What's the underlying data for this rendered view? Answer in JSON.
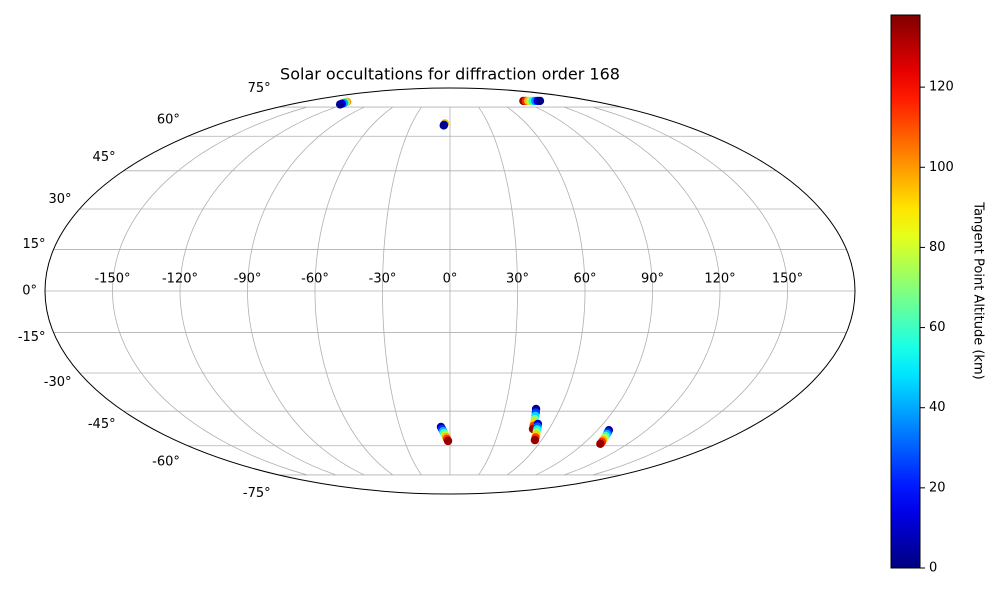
{
  "chart_data": {
    "type": "scatter",
    "projection": "mollweide",
    "title": "Solar occultations for diffraction order 168",
    "colorbar_label": "Tangent Point Altitude (km)",
    "colormap": "jet",
    "clim": [
      0,
      138
    ],
    "colorbar_ticks": [
      0,
      20,
      40,
      60,
      80,
      100,
      120
    ],
    "grid": true,
    "xticks": [
      {
        "value": -150,
        "label": "-150°"
      },
      {
        "value": -120,
        "label": "-120°"
      },
      {
        "value": -90,
        "label": "-90°"
      },
      {
        "value": -60,
        "label": "-60°"
      },
      {
        "value": -30,
        "label": "-30°"
      },
      {
        "value": 0,
        "label": "0°"
      },
      {
        "value": 30,
        "label": "30°"
      },
      {
        "value": 60,
        "label": "60°"
      },
      {
        "value": 90,
        "label": "90°"
      },
      {
        "value": 120,
        "label": "120°"
      },
      {
        "value": 150,
        "label": "150°"
      }
    ],
    "yticks": [
      {
        "value": -75,
        "label": "-75°"
      },
      {
        "value": -60,
        "label": "-60°"
      },
      {
        "value": -45,
        "label": "-45°"
      },
      {
        "value": -30,
        "label": "-30°"
      },
      {
        "value": -15,
        "label": "-15°"
      },
      {
        "value": 0,
        "label": "0°"
      },
      {
        "value": 15,
        "label": "15°"
      },
      {
        "value": 30,
        "label": "30°"
      },
      {
        "value": 45,
        "label": "45°"
      },
      {
        "value": 60,
        "label": "60°"
      },
      {
        "value": 75,
        "label": "75°"
      }
    ],
    "x": [
      -126,
      -125.5,
      -125,
      -124.5,
      -124,
      -4,
      -4.6,
      -4.8,
      93,
      96,
      99,
      102,
      105,
      108,
      111,
      114,
      -5.4,
      -4.8,
      -4.2,
      -3.7,
      -3.1,
      -2.5,
      -1.9,
      -1.3,
      47.0,
      47.6,
      48.1,
      48.6,
      49.2,
      49.7,
      50.3,
      51.7,
      52.3,
      53.0,
      53.6,
      54.3,
      54.9,
      55.6,
      97.0,
      97.6,
      98.3,
      98.9,
      99.6,
      100.2,
      100.9,
      101.5
    ],
    "y": [
      78.2,
      77.9,
      77.5,
      77.0,
      76.6,
      66.2,
      65.5,
      65.2,
      78.8,
      78.8,
      78.8,
      78.8,
      78.8,
      78.8,
      78.8,
      78.8,
      -51.6,
      -52.5,
      -53.4,
      -54.3,
      -55.1,
      -56.0,
      -56.9,
      -57.8,
      -44.1,
      -45.5,
      -46.9,
      -48.3,
      -49.7,
      -51.1,
      -52.5,
      -50.3,
      -51.5,
      -52.7,
      -53.9,
      -55.0,
      -56.2,
      -57.4,
      -53.0,
      -53.9,
      -54.7,
      -55.6,
      -56.5,
      -57.4,
      -58.2,
      -59.1
    ],
    "color_values": [
      100,
      70,
      40,
      15,
      3,
      95,
      20,
      3,
      135,
      115,
      95,
      75,
      55,
      35,
      15,
      2,
      5,
      23,
      42,
      60,
      78,
      97,
      115,
      135,
      3,
      25,
      47,
      69,
      91,
      113,
      135,
      10,
      31,
      52,
      72,
      93,
      114,
      135,
      5,
      23,
      42,
      60,
      78,
      97,
      115,
      135
    ]
  }
}
